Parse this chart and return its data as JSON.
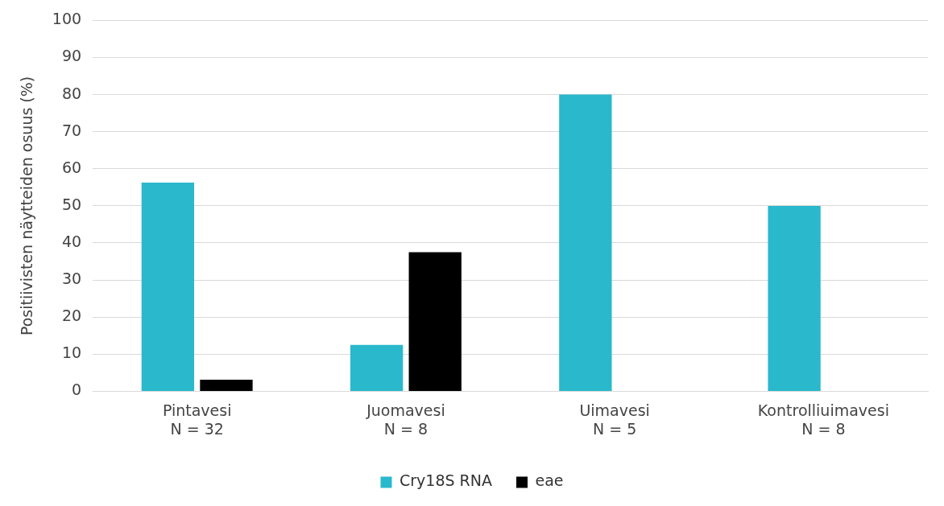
{
  "chart_data": {
    "type": "bar",
    "ylabel": "Positiivisten näytteiden osuus (%)",
    "categories": [
      "Pintavesi\nN = 32",
      "Juomavesi\nN = 8",
      "Uimavesi\nN = 5",
      "Kontrolliuimavesi\nN = 8"
    ],
    "series": [
      {
        "name": "Cry18S RNA",
        "color": "#29b8cc",
        "values": [
          56.25,
          12.5,
          80,
          50
        ]
      },
      {
        "name": "eae",
        "color": "#000000",
        "values": [
          3.1,
          37.5,
          0,
          0
        ]
      }
    ],
    "ylim": [
      0,
      100
    ],
    "yticks": [
      0,
      10,
      20,
      30,
      40,
      50,
      60,
      70,
      80,
      90,
      100
    ],
    "grid": "y",
    "legend": "bottom"
  }
}
